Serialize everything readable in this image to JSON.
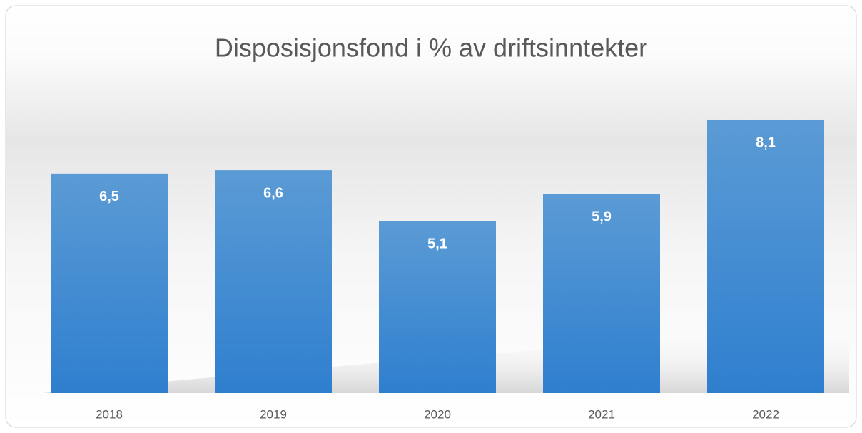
{
  "chart_data": {
    "type": "bar",
    "title": "Disposisjonsfond i % av driftsinntekter",
    "categories": [
      "2018",
      "2019",
      "2020",
      "2021",
      "2022"
    ],
    "values": [
      6.5,
      6.6,
      5.1,
      5.9,
      8.1
    ],
    "value_labels": [
      "6,5",
      "6,6",
      "5,1",
      "5,9",
      "8,1"
    ],
    "color": "#4a8fd6"
  }
}
